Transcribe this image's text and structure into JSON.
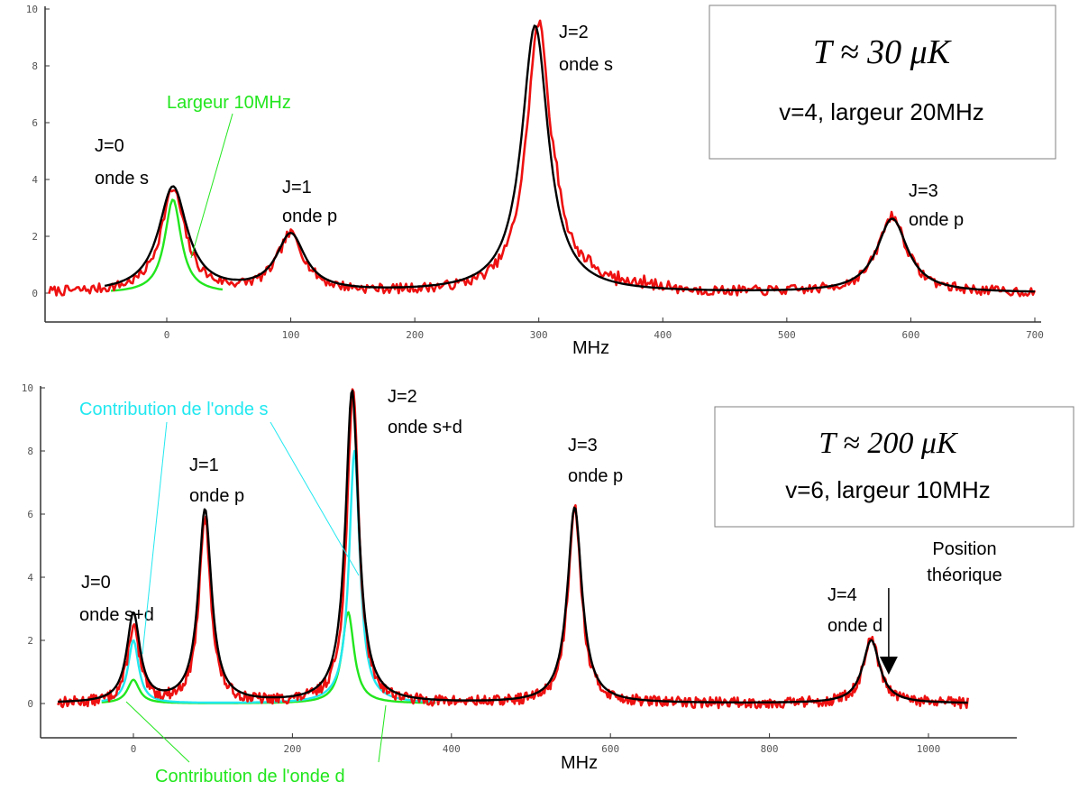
{
  "colors": {
    "experimental": "#ee1111",
    "fit": "#000000",
    "s_contribution": "#22e8f0",
    "d_contribution": "#22e61e",
    "width_curve": "#22e61e",
    "axis": "#333333"
  },
  "chart_data": [
    {
      "type": "line",
      "xlabel": "MHz",
      "ylabel": "",
      "xlim": [
        -95,
        700
      ],
      "ylim": [
        -1,
        10
      ],
      "xticks": [
        "0",
        "100",
        "200",
        "300",
        "400",
        "500",
        "600",
        "700"
      ],
      "yticks": [
        "0",
        "2",
        "4",
        "6",
        "8",
        "10"
      ],
      "peaks": [
        {
          "J": "J=0",
          "wave": "onde s",
          "x": 5,
          "y": 3.8
        },
        {
          "J": "J=1",
          "wave": "onde p",
          "x": 100,
          "y": 2.0
        },
        {
          "J": "J=2",
          "wave": "onde s",
          "x": 297,
          "y": 9.5
        },
        {
          "J": "J=3",
          "wave": "onde p",
          "x": 585,
          "y": 2.7
        }
      ],
      "annotations": {
        "width_label": "Largeur 10MHz"
      },
      "box": {
        "temperature": "T ≈ 30 μK",
        "condition": "v=4, largeur 20MHz"
      },
      "series": [
        {
          "kind": "experimental",
          "peaks": [
            [
              5,
              3.6,
              12
            ],
            [
              100,
              2.0,
              13
            ],
            [
              300,
              9.5,
              12
            ],
            [
              585,
              2.7,
              14
            ]
          ]
        },
        {
          "kind": "fit",
          "peaks": [
            [
              5,
              3.7,
              14
            ],
            [
              100,
              2.0,
              14
            ],
            [
              297,
              9.4,
              13
            ],
            [
              585,
              2.6,
              15
            ]
          ]
        },
        {
          "kind": "width",
          "peaks": [
            [
              5,
              3.3,
              8
            ]
          ]
        }
      ]
    },
    {
      "type": "line",
      "xlabel": "MHz",
      "ylabel": "",
      "xlim": [
        -95,
        1050
      ],
      "ylim": [
        -1,
        10
      ],
      "xticks": [
        "0",
        "200",
        "400",
        "600",
        "800",
        "1000"
      ],
      "yticks": [
        "0",
        "2",
        "4",
        "6",
        "8",
        "10"
      ],
      "peaks": [
        {
          "J": "J=0",
          "wave": "onde s+d",
          "x": 0,
          "y": 2.8
        },
        {
          "J": "J=1",
          "wave": "onde p",
          "x": 90,
          "y": 6.1
        },
        {
          "J": "J=2",
          "wave": "onde s+d",
          "x": 275,
          "y": 9.9
        },
        {
          "J": "J=3",
          "wave": "onde p",
          "x": 555,
          "y": 6.2
        },
        {
          "J": "J=4",
          "wave": "onde d",
          "x": 930,
          "y": 2.0
        }
      ],
      "annotations": {
        "s_label": "Contribution de l'onde s",
        "d_label": "Contribution de l'onde d",
        "theory_label_1": "Position",
        "theory_label_2": "théorique",
        "theory_x": 950
      },
      "box": {
        "temperature": "T ≈ 200 μK",
        "condition": "v=6, largeur 10MHz"
      },
      "series": [
        {
          "kind": "experimental",
          "peaks": [
            [
              0,
              2.4,
              9
            ],
            [
              90,
              5.8,
              9
            ],
            [
              276,
              9.9,
              9
            ],
            [
              555,
              6.3,
              10
            ],
            [
              928,
              2.0,
              12
            ]
          ]
        },
        {
          "kind": "fit",
          "peaks": [
            [
              0,
              2.8,
              10
            ],
            [
              90,
              6.1,
              10
            ],
            [
              275,
              9.9,
              10
            ],
            [
              555,
              6.2,
              11
            ],
            [
              928,
              2.0,
              13
            ]
          ]
        },
        {
          "kind": "s_contribution",
          "peaks": [
            [
              0,
              2.0,
              8
            ],
            [
              278,
              8.0,
              8
            ]
          ]
        },
        {
          "kind": "d_contribution",
          "peaks": [
            [
              0,
              0.75,
              9
            ],
            [
              270,
              2.9,
              9
            ]
          ]
        }
      ]
    }
  ]
}
